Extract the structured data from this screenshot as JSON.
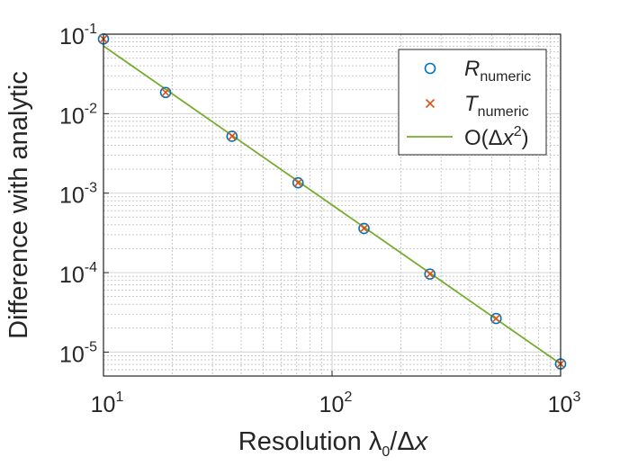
{
  "chart_data": {
    "type": "scatter",
    "x_scale": "log",
    "y_scale": "log",
    "xlim": [
      10,
      1000
    ],
    "ylim": [
      5e-06,
      0.1
    ],
    "x_ticks": [
      {
        "value": 10,
        "base": "10",
        "exp": "1"
      },
      {
        "value": 100,
        "base": "10",
        "exp": "2"
      },
      {
        "value": 1000,
        "base": "10",
        "exp": "3"
      }
    ],
    "y_ticks": [
      {
        "value": 1e-05,
        "base": "10",
        "exp": "-5"
      },
      {
        "value": 0.0001,
        "base": "10",
        "exp": "-4"
      },
      {
        "value": 0.001,
        "base": "10",
        "exp": "-3"
      },
      {
        "value": 0.01,
        "base": "10",
        "exp": "-2"
      },
      {
        "value": 0.1,
        "base": "10",
        "exp": "-1"
      }
    ],
    "xlabel": {
      "prefix": "Resolution  λ",
      "sub": "0",
      "mid": "/Δ",
      "italic": "x"
    },
    "ylabel": "Difference with analytic",
    "grid": true,
    "minor_grid": true,
    "legend_position": "top-right",
    "series": [
      {
        "name": {
          "italic": "R",
          "sub": "numeric"
        },
        "marker": "circle",
        "color": "#0072BD",
        "x": [
          10,
          18.7,
          36.5,
          71,
          138,
          268,
          522,
          1000
        ],
        "y": [
          0.087,
          0.0185,
          0.0052,
          0.00135,
          0.00036,
          9.6e-05,
          2.65e-05,
          7.1e-06
        ]
      },
      {
        "name": {
          "italic": "T",
          "sub": "numeric"
        },
        "marker": "x",
        "color": "#D95319",
        "x": [
          10,
          18.7,
          36.5,
          71,
          138,
          268,
          522,
          1000
        ],
        "y": [
          0.087,
          0.0185,
          0.0052,
          0.00135,
          0.00036,
          9.6e-05,
          2.65e-05,
          7.1e-06
        ]
      },
      {
        "name": {
          "prefix": "O(Δ",
          "italic": "x",
          "sup": "2",
          "suffix": ")"
        },
        "marker": "line",
        "color": "#77AC30",
        "x": [
          10,
          1000
        ],
        "y": [
          0.071,
          7.1e-06
        ]
      }
    ]
  }
}
